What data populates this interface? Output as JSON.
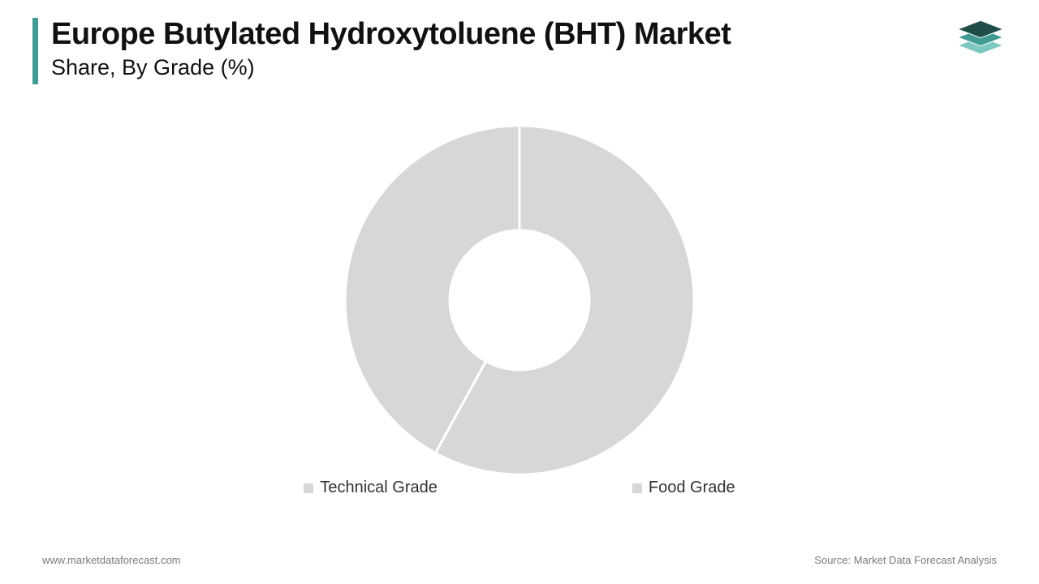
{
  "header": {
    "title": "Europe Butylated Hydroxytoluene (BHT) Market",
    "subtitle": "Share, By Grade (%)",
    "accent_color": "#3f9b94"
  },
  "logo": {
    "top_color": "#1f4d49",
    "mid_color": "#3f9b94",
    "bottom_color": "#7ec8c2"
  },
  "chart": {
    "type": "donut",
    "inner_radius_pct": 40,
    "outer_radius_pct": 100,
    "background_color": "#ffffff",
    "gap_color": "#ffffff",
    "gap_width": 3,
    "series": [
      {
        "label": "Technical Grade",
        "value": 58,
        "color": "#d7d7d7"
      },
      {
        "label": "Food Grade",
        "value": 42,
        "color": "#d7d7d7"
      }
    ],
    "legend": {
      "font_size": 20,
      "text_color": "#323232",
      "swatch_color": "#d7d7d7"
    }
  },
  "footer": {
    "left": "www.marketdataforecast.com",
    "right": "Source: Market Data Forecast Analysis",
    "text_color": "#7a7a7a",
    "font_size": 13
  }
}
